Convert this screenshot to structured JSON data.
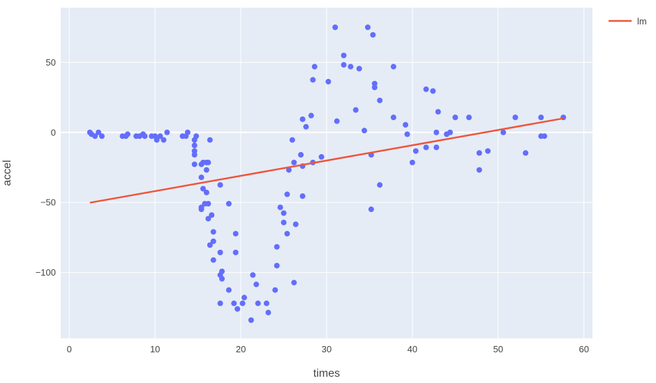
{
  "chart_data": {
    "type": "scatter",
    "title": "",
    "xlabel": "times",
    "ylabel": "accel",
    "xlim": [
      -1,
      61
    ],
    "ylim": [
      -147,
      89
    ],
    "xticks": [
      0,
      10,
      20,
      30,
      40,
      50,
      60
    ],
    "yticks": [
      -100,
      -50,
      0,
      50
    ],
    "ytick_labels": [
      "−100",
      "−50",
      "0",
      "50"
    ],
    "grid": true,
    "legend_position": "top-right",
    "colors": {
      "background": "#e5ecf6",
      "grid": "#ffffff",
      "points": "#636efa",
      "line": "#ef553b"
    },
    "series": [
      {
        "mode": "markers",
        "points": [
          [
            2.4,
            0
          ],
          [
            2.6,
            -1.3
          ],
          [
            3.0,
            -2.7
          ],
          [
            3.4,
            0
          ],
          [
            3.8,
            -2.7
          ],
          [
            6.2,
            -2.7
          ],
          [
            6.6,
            -2.7
          ],
          [
            6.8,
            -1.3
          ],
          [
            7.8,
            -2.7
          ],
          [
            8.2,
            -2.7
          ],
          [
            8.6,
            -1.3
          ],
          [
            8.8,
            -2.7
          ],
          [
            9.6,
            -2.7
          ],
          [
            10.0,
            -2.7
          ],
          [
            10.2,
            -5.4
          ],
          [
            10.6,
            -2.7
          ],
          [
            11.0,
            -5.4
          ],
          [
            11.4,
            0
          ],
          [
            13.2,
            -2.7
          ],
          [
            13.6,
            -2.7
          ],
          [
            13.8,
            0
          ],
          [
            14.6,
            -5.4
          ],
          [
            14.6,
            -9.3
          ],
          [
            14.6,
            -13.3
          ],
          [
            14.6,
            -16.0
          ],
          [
            14.6,
            -22.8
          ],
          [
            14.8,
            -2.7
          ],
          [
            15.4,
            -32.1
          ],
          [
            15.4,
            -53.5
          ],
          [
            15.4,
            -54.9
          ],
          [
            15.4,
            -22.8
          ],
          [
            15.6,
            -21.5
          ],
          [
            15.6,
            -40.2
          ],
          [
            15.8,
            -50.9
          ],
          [
            16.0,
            -42.9
          ],
          [
            16.0,
            -26.8
          ],
          [
            16.0,
            -21.5
          ],
          [
            16.2,
            -61.6
          ],
          [
            16.2,
            -50.9
          ],
          [
            16.2,
            -21.5
          ],
          [
            16.4,
            -5.4
          ],
          [
            16.4,
            -80.4
          ],
          [
            16.6,
            -59.0
          ],
          [
            16.8,
            -77.7
          ],
          [
            16.8,
            -71.0
          ],
          [
            16.8,
            -91.1
          ],
          [
            17.6,
            -37.5
          ],
          [
            17.6,
            -85.7
          ],
          [
            17.6,
            -101.8
          ],
          [
            17.6,
            -122.0
          ],
          [
            17.8,
            -99.2
          ],
          [
            17.8,
            -104.5
          ],
          [
            18.6,
            -50.9
          ],
          [
            18.6,
            -112.5
          ],
          [
            19.2,
            -122.0
          ],
          [
            19.4,
            -72.3
          ],
          [
            19.4,
            -85.7
          ],
          [
            19.6,
            -126.0
          ],
          [
            20.2,
            -122.0
          ],
          [
            20.4,
            -117.9
          ],
          [
            21.2,
            -134.0
          ],
          [
            21.4,
            -101.8
          ],
          [
            21.8,
            -108.5
          ],
          [
            22.0,
            -122.0
          ],
          [
            23.0,
            -122.0
          ],
          [
            23.2,
            -128.6
          ],
          [
            24.0,
            -112.5
          ],
          [
            24.2,
            -81.7
          ],
          [
            24.2,
            -95.1
          ],
          [
            24.6,
            -53.5
          ],
          [
            25.0,
            -64.3
          ],
          [
            25.0,
            -57.6
          ],
          [
            25.4,
            -72.3
          ],
          [
            25.4,
            -44.2
          ],
          [
            25.6,
            -26.8
          ],
          [
            26.0,
            -5.4
          ],
          [
            26.2,
            -21.5
          ],
          [
            26.2,
            -107.2
          ],
          [
            26.4,
            -65.6
          ],
          [
            27.0,
            -16.0
          ],
          [
            27.2,
            -24.1
          ],
          [
            27.2,
            -45.5
          ],
          [
            27.2,
            9.4
          ],
          [
            27.6,
            4.0
          ],
          [
            28.2,
            12.0
          ],
          [
            28.4,
            37.5
          ],
          [
            28.4,
            -21.5
          ],
          [
            28.6,
            46.9
          ],
          [
            29.4,
            -17.5
          ],
          [
            30.2,
            36.2
          ],
          [
            31.0,
            75.0
          ],
          [
            31.2,
            8.0
          ],
          [
            32.0,
            48.2
          ],
          [
            32.0,
            54.9
          ],
          [
            32.8,
            46.9
          ],
          [
            33.4,
            16.0
          ],
          [
            33.8,
            45.5
          ],
          [
            34.4,
            1.3
          ],
          [
            34.8,
            75.0
          ],
          [
            35.2,
            -16.0
          ],
          [
            35.2,
            -54.9
          ],
          [
            35.4,
            69.6
          ],
          [
            35.6,
            32.1
          ],
          [
            35.6,
            34.8
          ],
          [
            36.2,
            22.8
          ],
          [
            36.2,
            -37.5
          ],
          [
            37.8,
            46.9
          ],
          [
            37.8,
            10.7
          ],
          [
            39.2,
            5.4
          ],
          [
            39.4,
            -1.3
          ],
          [
            40.0,
            -21.5
          ],
          [
            40.4,
            -13.3
          ],
          [
            41.6,
            -10.7
          ],
          [
            41.6,
            30.8
          ],
          [
            42.4,
            29.5
          ],
          [
            42.8,
            0
          ],
          [
            42.8,
            -10.7
          ],
          [
            43.0,
            14.7
          ],
          [
            44.0,
            -1.3
          ],
          [
            44.4,
            0
          ],
          [
            45.0,
            10.7
          ],
          [
            46.6,
            10.7
          ],
          [
            47.8,
            -14.7
          ],
          [
            47.8,
            -26.8
          ],
          [
            48.8,
            -13.3
          ],
          [
            50.6,
            0
          ],
          [
            52.0,
            10.7
          ],
          [
            53.2,
            -14.7
          ],
          [
            55.0,
            10.7
          ],
          [
            55.0,
            -2.7
          ],
          [
            55.4,
            -2.7
          ],
          [
            57.6,
            10.7
          ]
        ]
      },
      {
        "name": "lm",
        "mode": "line",
        "points": [
          [
            2.4,
            -50.2
          ],
          [
            57.6,
            10.0
          ]
        ]
      }
    ]
  }
}
